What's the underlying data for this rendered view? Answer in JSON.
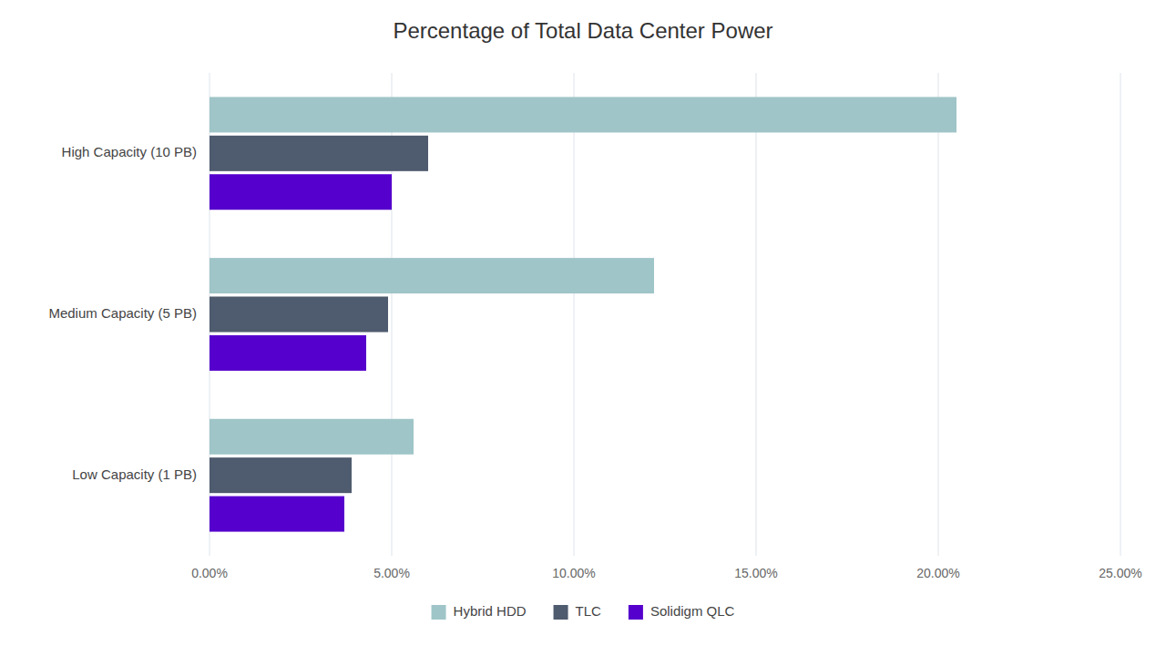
{
  "chart_data": {
    "type": "bar",
    "orientation": "horizontal",
    "title": "Percentage of Total Data Center Power",
    "categories": [
      "High Capacity (10 PB)",
      "Medium Capacity (5 PB)",
      "Low Capacity (1 PB)"
    ],
    "series": [
      {
        "name": "Hybrid HDD",
        "values": [
          0.205,
          0.122,
          0.056
        ],
        "color": "#9fc5c8"
      },
      {
        "name": "TLC",
        "values": [
          0.06,
          0.049,
          0.039
        ],
        "color": "#4f5b6e"
      },
      {
        "name": "Solidigm QLC",
        "values": [
          0.05,
          0.043,
          0.037
        ],
        "color": "#5500cc"
      }
    ],
    "xlim": [
      0,
      0.25
    ],
    "xticks": [
      {
        "value": 0.0,
        "label": "0.00%"
      },
      {
        "value": 0.05,
        "label": "5.00%"
      },
      {
        "value": 0.1,
        "label": "10.00%"
      },
      {
        "value": 0.15,
        "label": "15.00%"
      },
      {
        "value": 0.2,
        "label": "20.00%"
      },
      {
        "value": 0.25,
        "label": "25.00%"
      }
    ],
    "grid": true,
    "legend": "bottom"
  }
}
